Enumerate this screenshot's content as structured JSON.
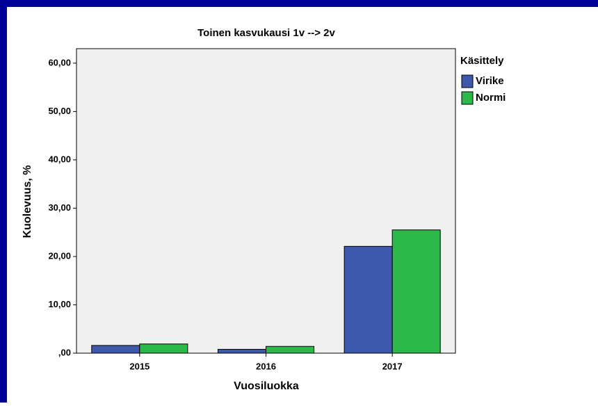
{
  "chart_data": {
    "type": "bar",
    "title": "Toinen kasvukausi 1v --> 2v",
    "x_label": "Vuosiluokka",
    "y_label": "Kuolevuus, %",
    "legend_title": "Käsittely",
    "legend": "right",
    "categories": [
      "2015",
      "2016",
      "2017"
    ],
    "series": [
      {
        "name": "Virike",
        "color": "#3e58ac",
        "values": [
          1.6,
          0.8,
          22.1
        ]
      },
      {
        "name": "Normi",
        "color": "#2db84a",
        "values": [
          1.9,
          1.4,
          25.5
        ]
      }
    ],
    "ylim": [
      0,
      63
    ],
    "yticks": [
      {
        "value": 0,
        "label": ",00"
      },
      {
        "value": 10,
        "label": "10,00"
      },
      {
        "value": 20,
        "label": "20,00"
      },
      {
        "value": 30,
        "label": "30,00"
      },
      {
        "value": 40,
        "label": "40,00"
      },
      {
        "value": 50,
        "label": "50,00"
      },
      {
        "value": 60,
        "label": "60,00"
      }
    ]
  }
}
